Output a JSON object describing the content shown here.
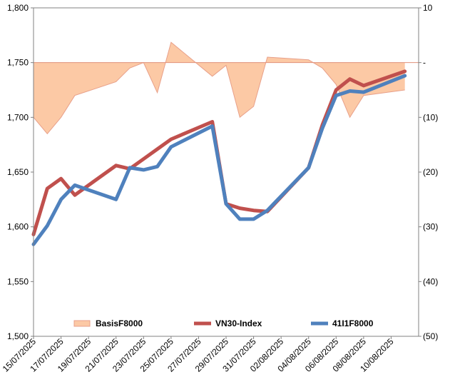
{
  "chart_data": {
    "type": "line",
    "title": "",
    "xlabel": "",
    "ylabel": "",
    "x": [
      "15/07/2025",
      "16/07/2025",
      "17/07/2025",
      "18/07/2025",
      "21/07/2025",
      "22/07/2025",
      "23/07/2025",
      "24/07/2025",
      "25/07/2025",
      "28/07/2025",
      "29/07/2025",
      "30/07/2025",
      "31/07/2025",
      "01/08/2025",
      "04/08/2025",
      "05/08/2025",
      "06/08/2025",
      "07/08/2025",
      "08/08/2025",
      "11/08/2025"
    ],
    "x_tick_labels": [
      "15/07/2025",
      "17/07/2025",
      "19/07/2025",
      "21/07/2025",
      "23/07/2025",
      "25/07/2025",
      "27/07/2025",
      "29/07/2025",
      "31/07/2025",
      "02/08/2025",
      "04/08/2025",
      "06/08/2025",
      "08/08/2025",
      "10/08/2025"
    ],
    "y_left": {
      "ylim": [
        1500,
        1800
      ],
      "ticks": [
        "1,500",
        "1,550",
        "1,600",
        "1,650",
        "1,700",
        "1,750",
        "1,800"
      ]
    },
    "y_right": {
      "ylim": [
        -50,
        10
      ],
      "ticks": [
        "(50)",
        "(40)",
        "(30)",
        "(20)",
        "(10)",
        "-",
        "10"
      ]
    },
    "legend_position": "bottom",
    "series": [
      {
        "name": "BasisF8000",
        "type": "area",
        "axis": "right",
        "color": "#fcc9a5",
        "edge_color": "#e8a08a",
        "values": [
          -10,
          -13,
          -10,
          -6,
          -3.5,
          -1,
          0,
          -5.5,
          3.7,
          -2.5,
          -0.5,
          -10,
          -8,
          1,
          0.5,
          -1,
          -4,
          -10,
          -6,
          -5
        ]
      },
      {
        "name": "VN30-Index",
        "type": "line",
        "axis": "left",
        "color": "#c0504d",
        "values": [
          1593,
          1635,
          1644,
          1629,
          1656,
          1653,
          1662,
          1671,
          1680,
          1696,
          1621,
          1617,
          1615,
          1614,
          1654,
          1693,
          1725,
          1735,
          1729,
          1742
        ]
      },
      {
        "name": "41I1F8000",
        "type": "line",
        "axis": "left",
        "color": "#4f81bd",
        "values": [
          1584,
          1601,
          1625,
          1638,
          1625,
          1654,
          1652,
          1655,
          1673,
          1692,
          1621,
          1607,
          1607,
          1615,
          1654,
          1690,
          1720,
          1724,
          1723,
          1738
        ]
      }
    ]
  }
}
